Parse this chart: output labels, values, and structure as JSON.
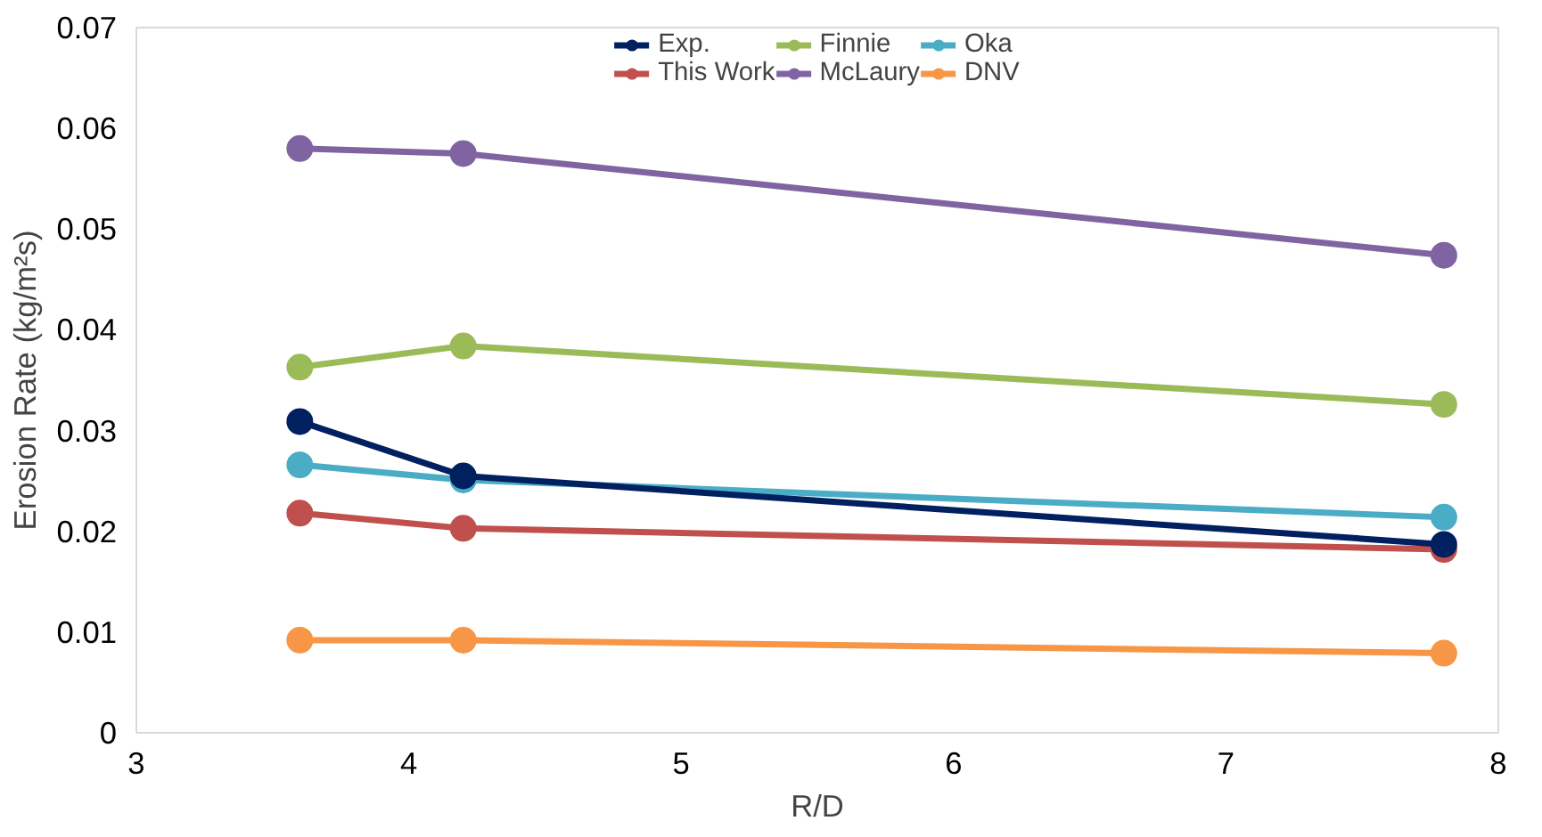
{
  "chart_data": {
    "type": "line",
    "xlabel": "R/D",
    "ylabel": "Erosion Rate (kg/m²s)",
    "x": [
      3.6,
      4.2,
      7.8
    ],
    "series": [
      {
        "name": "Exp.",
        "color": "#002060",
        "values": [
          0.0309,
          0.0255,
          0.0187
        ]
      },
      {
        "name": "This Work",
        "color": "#c0504d",
        "values": [
          0.0218,
          0.0203,
          0.0182
        ]
      },
      {
        "name": "Finnie",
        "color": "#9bbb59",
        "values": [
          0.0363,
          0.0384,
          0.0326
        ]
      },
      {
        "name": "McLaury",
        "color": "#8064a2",
        "values": [
          0.058,
          0.0575,
          0.0474
        ]
      },
      {
        "name": "Oka",
        "color": "#4bacc6",
        "values": [
          0.0266,
          0.0251,
          0.0214
        ]
      },
      {
        "name": "DNV",
        "color": "#f79646",
        "values": [
          0.0092,
          0.0092,
          0.0079
        ]
      }
    ],
    "xlim": [
      3,
      8
    ],
    "ylim": [
      0,
      0.07
    ],
    "xticks": [
      3,
      4,
      5,
      6,
      7,
      8
    ],
    "yticks": [
      0,
      0.01,
      0.02,
      0.03,
      0.04,
      0.05,
      0.06,
      0.07
    ],
    "grid": false,
    "legend": "top",
    "marker": "circle",
    "line_style": "solid"
  }
}
